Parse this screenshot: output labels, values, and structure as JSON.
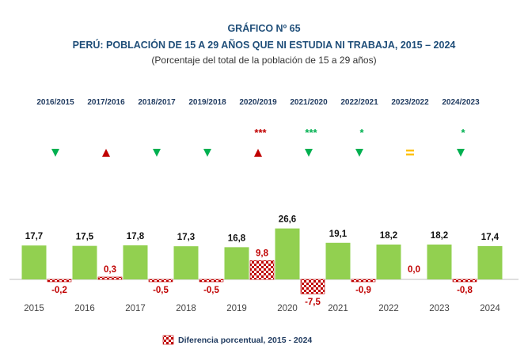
{
  "header": {
    "chart_number": "GRÁFICO Nº 65",
    "title": "PERÚ: POBLACIÓN DE 15 A 29 AÑOS QUE NI ESTUDIA NI TRABAJA, 2015 – 2024",
    "subtitle": "(Porcentaje del total de la población de 15 a 29 años)"
  },
  "colors": {
    "bar": "#92d050",
    "diff": "#c00000",
    "down": "#00b050",
    "up": "#c00000",
    "equal": "#ffc000",
    "title": "#1f4e79"
  },
  "chart_data": {
    "type": "bar",
    "title": "PERÚ: POBLACIÓN DE 15 A 29 AÑOS QUE NI ESTUDIA NI TRABAJA, 2015 – 2024",
    "subtitle": "(Porcentaje del total de la población de 15 a 29 años)",
    "categories": [
      "2015",
      "2016",
      "2017",
      "2018",
      "2019",
      "2020",
      "2021",
      "2022",
      "2023",
      "2024"
    ],
    "values": [
      17.7,
      17.5,
      17.8,
      17.3,
      16.8,
      26.6,
      19.1,
      18.2,
      18.2,
      17.4
    ],
    "value_labels": [
      "17,7",
      "17,5",
      "17,8",
      "17,3",
      "16,8",
      "26,6",
      "19,1",
      "18,2",
      "18,2",
      "17,4"
    ],
    "differences": {
      "name": "Diferencia porcentual, 2015 - 2024",
      "values": [
        -0.2,
        0.3,
        -0.5,
        -0.5,
        9.8,
        -7.5,
        -0.9,
        0.0,
        -0.8
      ],
      "labels": [
        "-0,2",
        "0,3",
        "-0,5",
        "-0,5",
        "9,8",
        "-7,5",
        "-0,9",
        "0,0",
        "-0,8"
      ]
    },
    "periods": [
      {
        "label": "2016/2015",
        "trend": "down",
        "significance": ""
      },
      {
        "label": "2017/2016",
        "trend": "up",
        "significance": ""
      },
      {
        "label": "2018/2017",
        "trend": "down",
        "significance": ""
      },
      {
        "label": "2019/2018",
        "trend": "down",
        "significance": ""
      },
      {
        "label": "2020/2019",
        "trend": "up",
        "significance": "***"
      },
      {
        "label": "2021/2020",
        "trend": "down",
        "significance": "***"
      },
      {
        "label": "2022/2021",
        "trend": "down",
        "significance": "*"
      },
      {
        "label": "2023/2022",
        "trend": "equal",
        "significance": ""
      },
      {
        "label": "2024/2023",
        "trend": "down",
        "significance": "*"
      }
    ],
    "legend": [
      {
        "label": "Diferencia porcentual, 2015 - 2024",
        "position": "bottom"
      }
    ],
    "grid": false
  }
}
